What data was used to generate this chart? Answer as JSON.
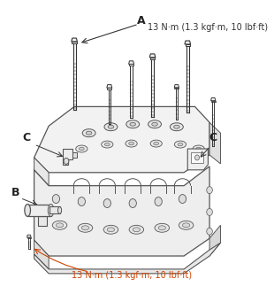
{
  "bg_color": "#ffffff",
  "label_A": "A",
  "label_B": "B",
  "label_C": "C",
  "torque_top": "13 N·m (1.3 kgf·m, 10 lbf·ft)",
  "torque_bottom": "13 N·m (1.3 kgf·m, 10 lbf·ft)",
  "line_color": "#333333",
  "body_stroke": "#555555",
  "annotation_color": "#222222",
  "font_size_label": 8,
  "font_size_torque": 7,
  "torque_color_top": "#333333",
  "torque_color_bottom": "#cc4400",
  "body_fill": "#f5f5f5",
  "body_fill_dark": "#e5e5e5",
  "bolt_fill": "#ffffff"
}
